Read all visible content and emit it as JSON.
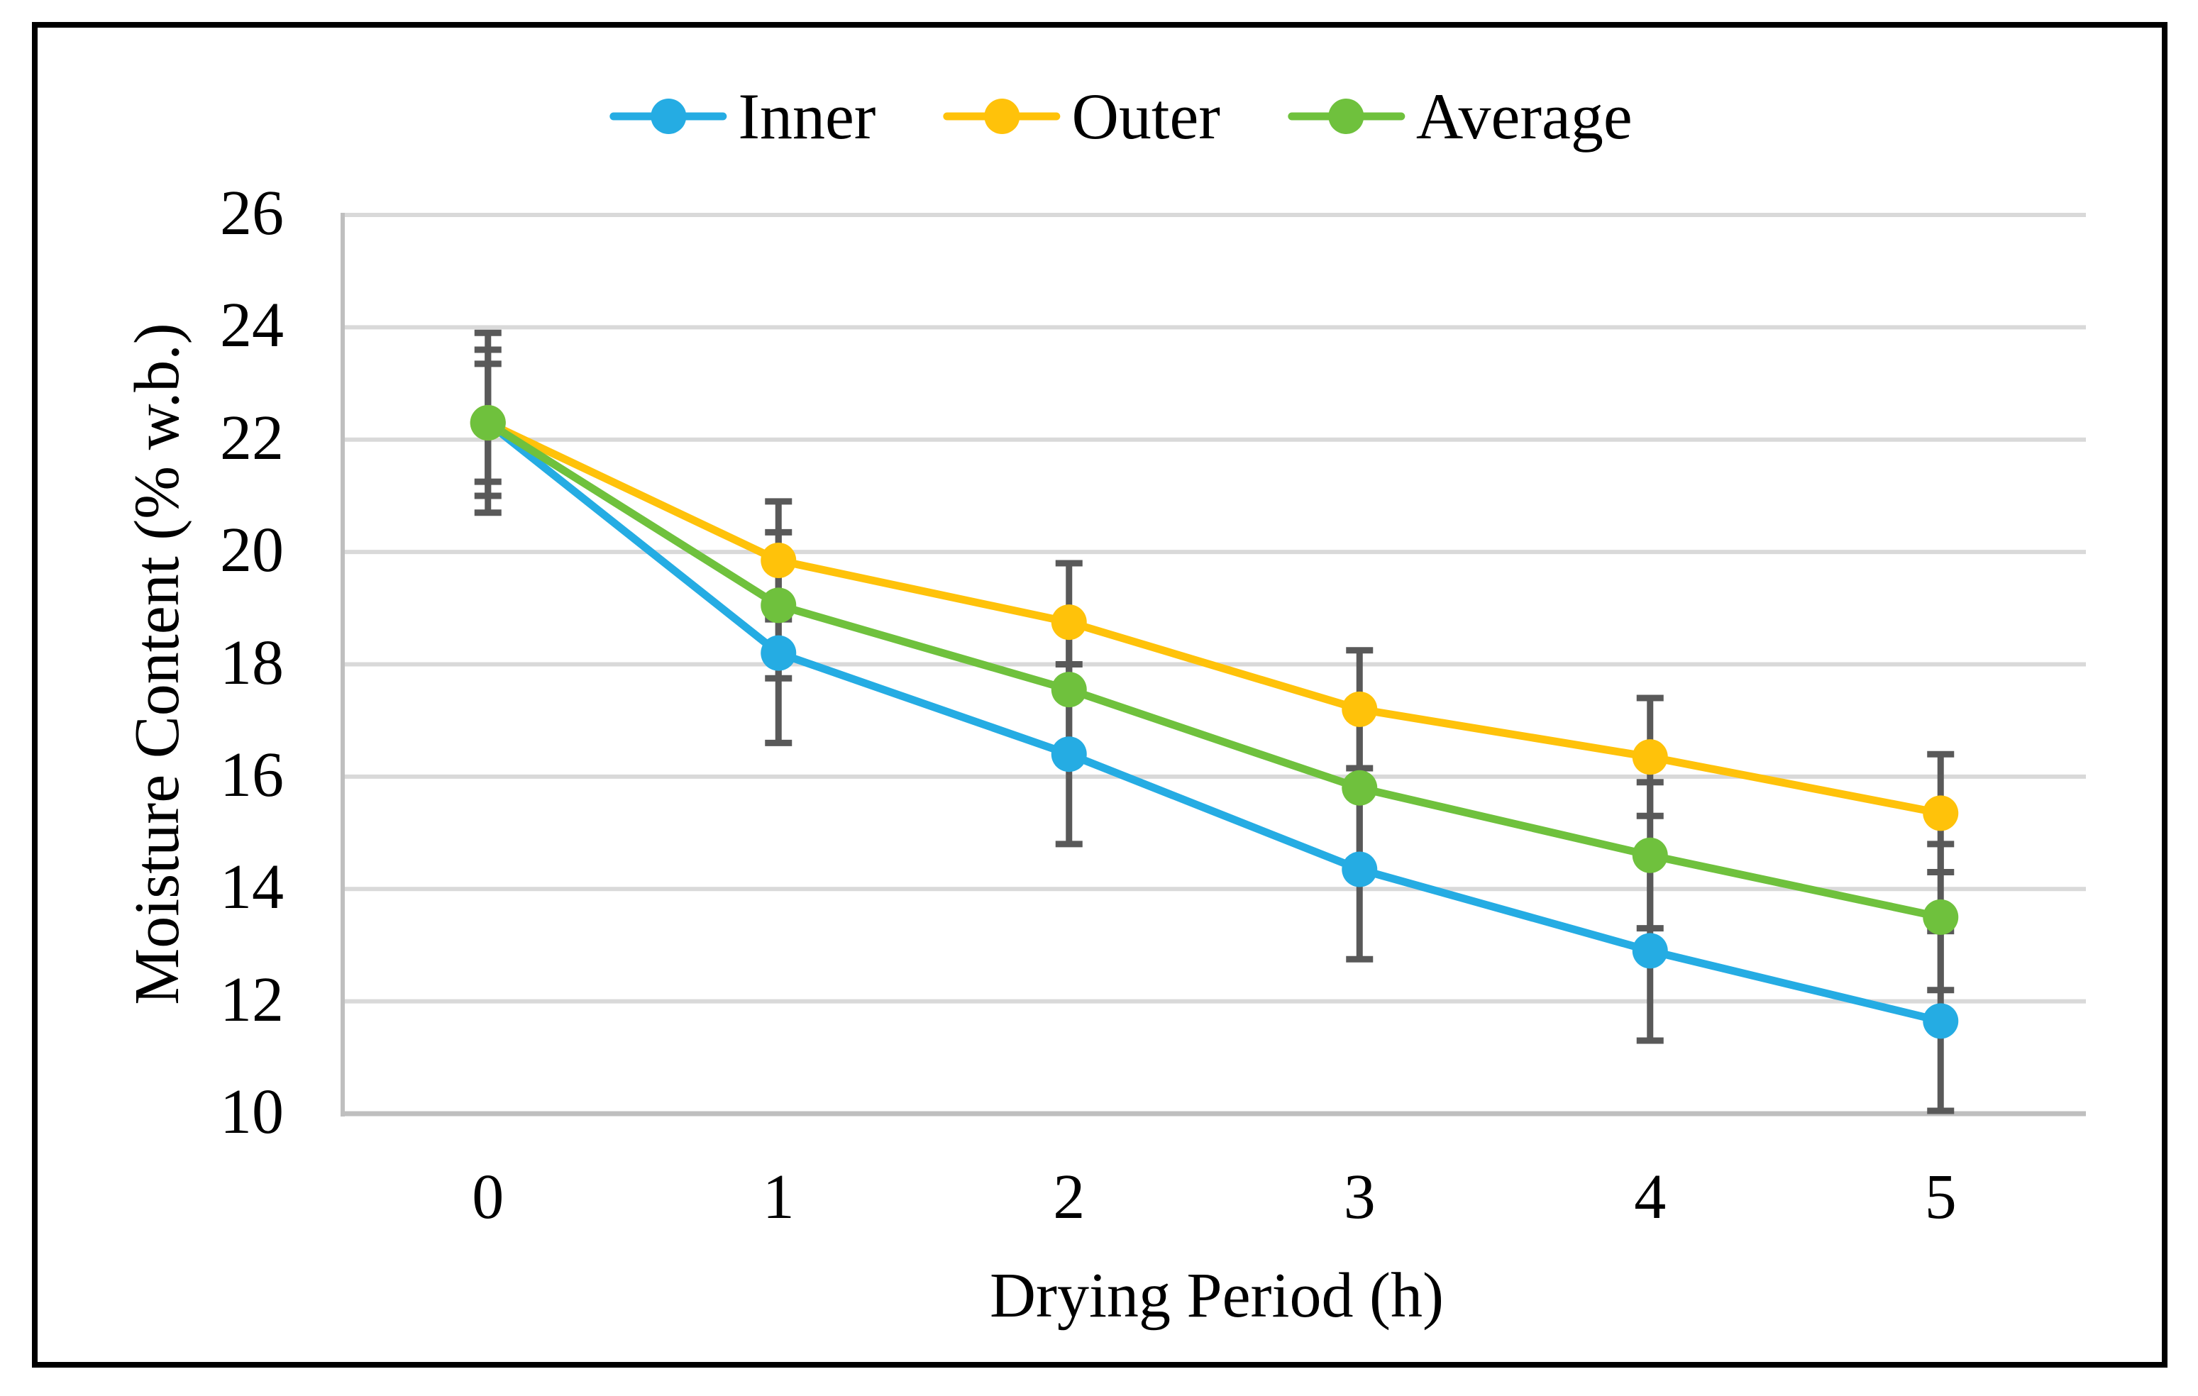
{
  "figure": {
    "background": "#ffffff",
    "border_color": "#000000"
  },
  "chart_data": {
    "type": "line",
    "title": "",
    "xlabel": "Drying Period (h)",
    "ylabel": "Moisture Content (% w.b.)",
    "x": [
      0,
      1,
      2,
      3,
      4,
      5
    ],
    "x_tick_labels": [
      "0",
      "1",
      "2",
      "3",
      "4",
      "5"
    ],
    "y_ticks": [
      10,
      12,
      14,
      16,
      18,
      20,
      22,
      24,
      26
    ],
    "ylim": [
      10,
      26
    ],
    "grid": "horizontal",
    "legend_position": "top-center",
    "series": [
      {
        "name": "Inner",
        "color": "#25ACE3",
        "values": [
          22.3,
          18.2,
          16.4,
          14.35,
          12.9,
          11.65
        ],
        "error": 1.6
      },
      {
        "name": "Outer",
        "color": "#FFC20A",
        "values": [
          22.3,
          19.85,
          18.75,
          17.2,
          16.35,
          15.35
        ],
        "error": 1.05
      },
      {
        "name": "Average",
        "color": "#6FC13D",
        "values": [
          22.3,
          19.05,
          17.55,
          15.8,
          14.6,
          13.5
        ],
        "error": 1.3
      }
    ],
    "error_bar_color": "#595959",
    "gridline_color": "#D9D9D9",
    "axis_line_color": "#BFBFBF",
    "marker": "circle"
  }
}
